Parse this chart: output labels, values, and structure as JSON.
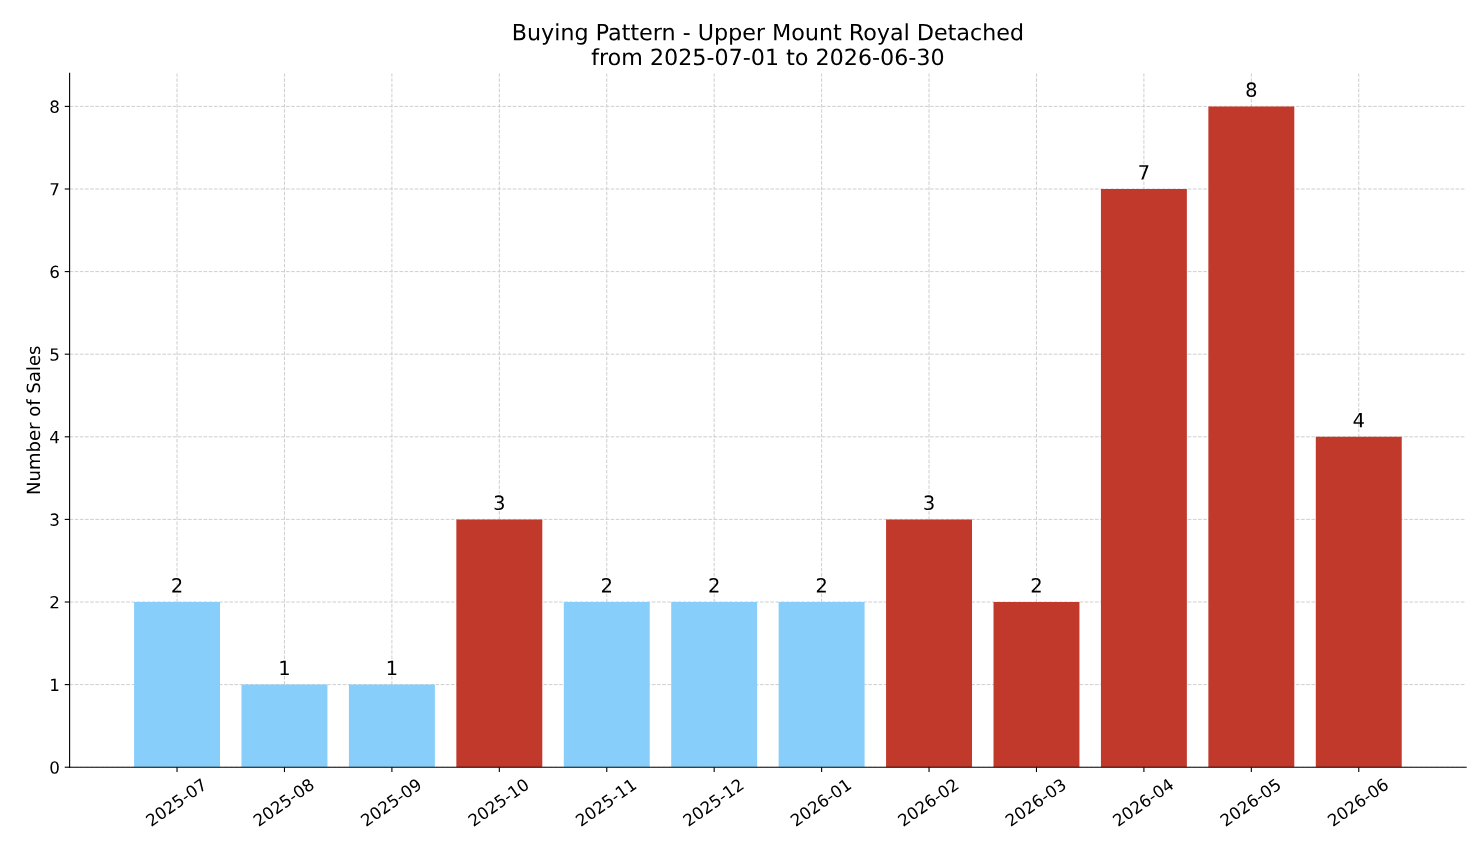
{
  "chart_data": {
    "type": "bar",
    "title": "Buying Pattern - Upper Mount Royal Detached\nfrom 2025-07-01 to 2026-06-30",
    "ylabel": "Number of Sales",
    "categories": [
      "2025-07",
      "2025-08",
      "2025-09",
      "2025-10",
      "2025-11",
      "2025-12",
      "2026-01",
      "2026-02",
      "2026-03",
      "2026-04",
      "2026-05",
      "2026-06"
    ],
    "values": [
      2,
      1,
      1,
      3,
      2,
      2,
      2,
      3,
      2,
      7,
      8,
      4
    ],
    "colors": [
      "#87cefa",
      "#87cefa",
      "#87cefa",
      "#c0392b",
      "#87cefa",
      "#87cefa",
      "#87cefa",
      "#c0392b",
      "#c0392b",
      "#c0392b",
      "#c0392b",
      "#c0392b"
    ],
    "ylim": [
      0,
      8.4
    ],
    "yticks": [
      0,
      1,
      2,
      3,
      4,
      5,
      6,
      7,
      8
    ],
    "grid": true,
    "data_labels": true
  }
}
